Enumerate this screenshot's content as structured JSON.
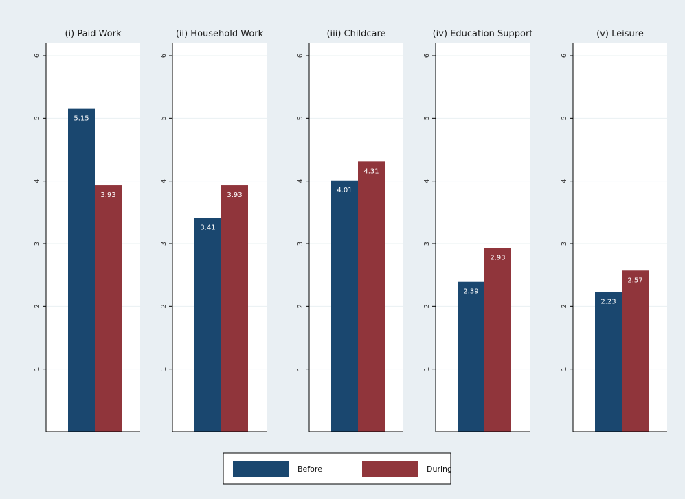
{
  "chart_data": {
    "type": "bar",
    "ylim": [
      0,
      6
    ],
    "yticks": [
      1,
      2,
      3,
      4,
      5,
      6
    ],
    "series": [
      {
        "name": "Before",
        "color": "#1a476f"
      },
      {
        "name": "During",
        "color": "#90353b"
      }
    ],
    "panels": [
      {
        "title": "(i) Paid Work",
        "values": [
          5.15,
          3.93
        ],
        "labels": [
          "5.15",
          "3.93"
        ]
      },
      {
        "title": "(ii) Household Work",
        "values": [
          3.41,
          3.93
        ],
        "labels": [
          "3.41",
          "3.93"
        ]
      },
      {
        "title": "(iii) Childcare",
        "values": [
          4.01,
          4.31
        ],
        "labels": [
          "4.01",
          "4.31"
        ]
      },
      {
        "title": "(iv) Education Support",
        "values": [
          2.39,
          2.93
        ],
        "labels": [
          "2.39",
          "2.93"
        ]
      },
      {
        "title": "(v) Leisure",
        "values": [
          2.23,
          2.57
        ],
        "labels": [
          "2.23",
          "2.57"
        ]
      }
    ],
    "legend": {
      "position": "bottom-center"
    },
    "background_color": "#e9eff3",
    "plot_color": "#ffffff",
    "grid": true
  }
}
